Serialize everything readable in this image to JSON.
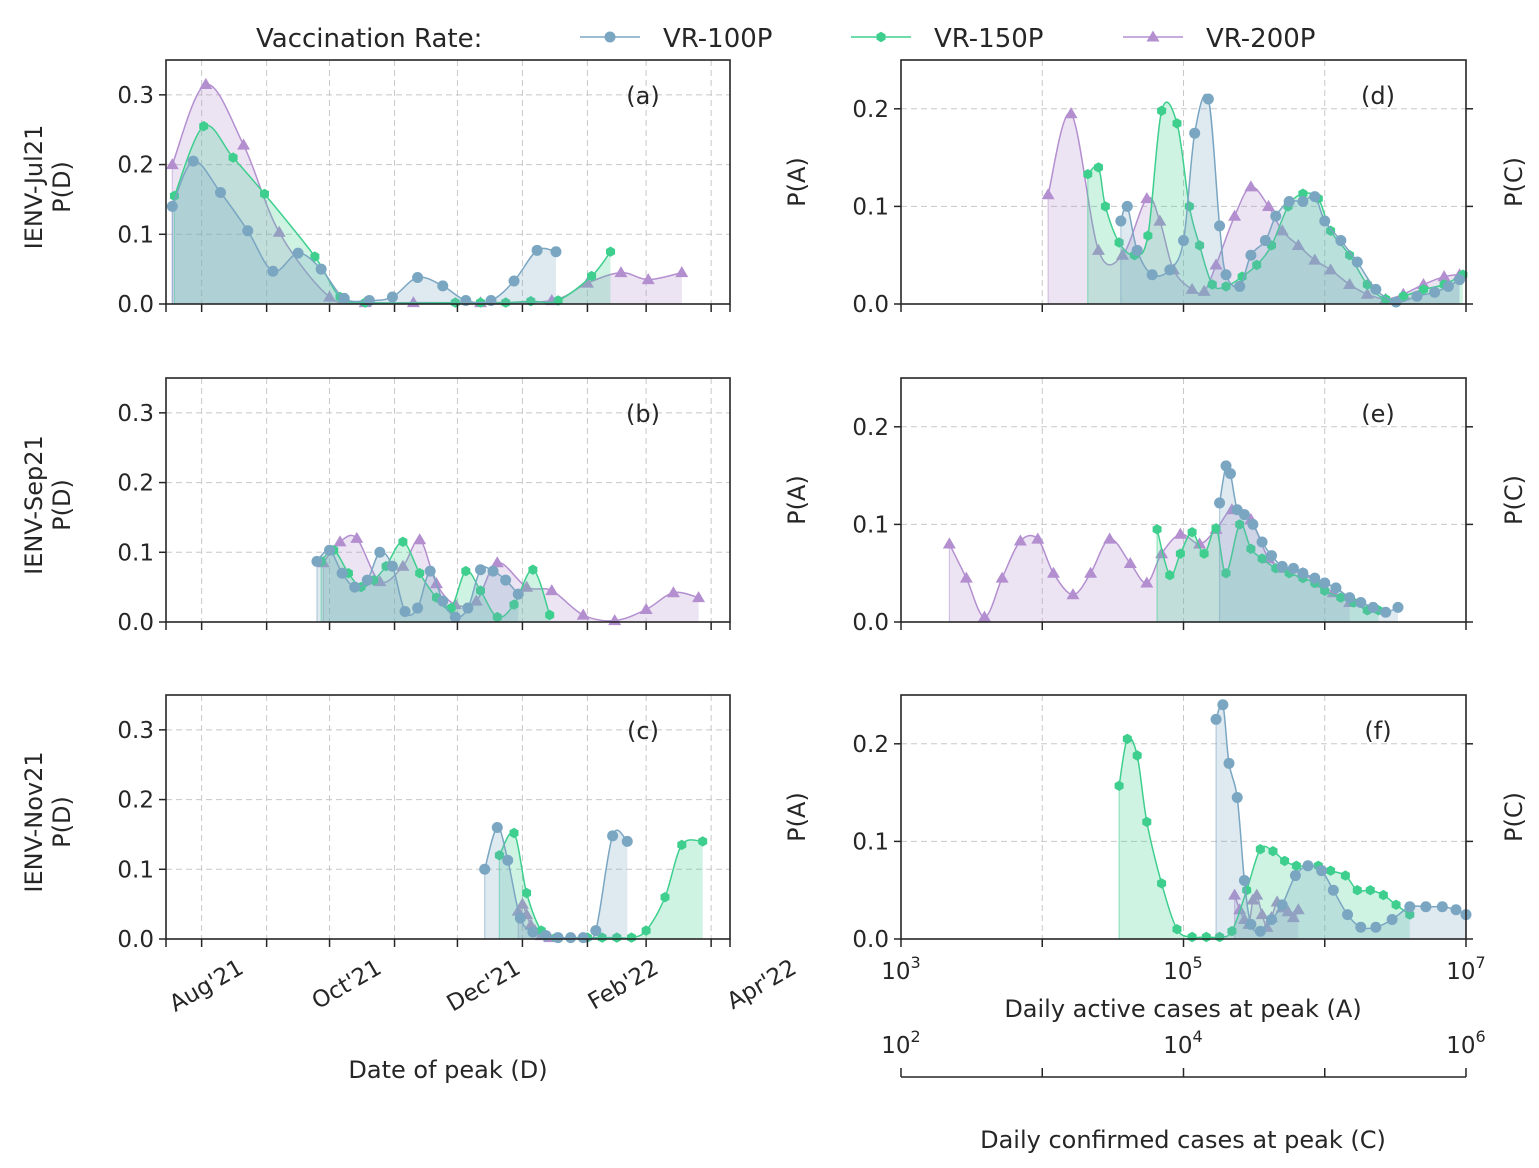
{
  "legend": {
    "title": "Vaccination Rate:",
    "entries": [
      "VR-100P",
      "VR-150P",
      "VR-200P"
    ]
  },
  "colors": {
    "VR-100P": "#7aa6c2",
    "VR-150P": "#3ecf8e",
    "VR-200P": "#b48fd0"
  },
  "left_xlabel": "Date of peak (D)",
  "right_xlabel_primary": "Daily active cases at peak (A)",
  "right_xlabel_secondary": "Daily confirmed cases at peak (C)",
  "row_labels": [
    "IENV-Jul21",
    "IENV-Sep21",
    "IENV-Nov21"
  ],
  "left_ylabel": "P(D)",
  "right_ylabel_left": "P(A)",
  "right_ylabel_right": "P(C)",
  "left_xticks": [
    "Aug'21",
    "Oct'21",
    "Dec'21",
    "Feb'22",
    "Apr'22"
  ],
  "left_yticks": [
    "0.0",
    "0.1",
    "0.2",
    "0.3"
  ],
  "right_yticks": [
    "0.0",
    "0.1",
    "0.2"
  ],
  "right_xticks_primary": [
    {
      "base": "10",
      "exp": "3"
    },
    {
      "base": "10",
      "exp": "5"
    },
    {
      "base": "10",
      "exp": "7"
    }
  ],
  "right_xticks_secondary": [
    {
      "base": "10",
      "exp": "2"
    },
    {
      "base": "10",
      "exp": "4"
    },
    {
      "base": "10",
      "exp": "6"
    }
  ],
  "chart_data": [
    {
      "type": "area",
      "panel": "(a)",
      "scenario": "IENV-Jul21",
      "x_axis": "date",
      "xlim": [
        "2021-07-15",
        "2022-04-10"
      ],
      "ylim": [
        0,
        0.35
      ],
      "series": [
        {
          "name": "VR-100P",
          "x": [
            "2021-07-18",
            "2021-07-28",
            "2021-08-10",
            "2021-08-23",
            "2021-09-04",
            "2021-09-16",
            "2021-09-27",
            "2021-10-08",
            "2021-10-20",
            "2021-10-31",
            "2021-11-12",
            "2021-11-24",
            "2021-12-05",
            "2021-12-17",
            "2021-12-28",
            "2022-01-08",
            "2022-01-17"
          ],
          "y": [
            0.14,
            0.205,
            0.16,
            0.105,
            0.047,
            0.073,
            0.05,
            0.008,
            0.005,
            0.01,
            0.038,
            0.026,
            0.005,
            0.005,
            0.033,
            0.077,
            0.075
          ]
        },
        {
          "name": "VR-150P",
          "x": [
            "2021-07-19",
            "2021-08-02",
            "2021-08-16",
            "2021-08-31",
            "2021-09-24",
            "2021-10-06",
            "2021-10-18",
            "2021-11-30",
            "2021-12-12",
            "2021-12-24",
            "2022-01-05",
            "2022-01-18",
            "2022-02-03",
            "2022-02-12"
          ],
          "y": [
            0.155,
            0.255,
            0.21,
            0.158,
            0.068,
            0.01,
            0.002,
            0.002,
            0.002,
            0.002,
            0.004,
            0.005,
            0.04,
            0.075
          ]
        },
        {
          "name": "VR-200P",
          "x": [
            "2021-07-18",
            "2021-08-03",
            "2021-08-21",
            "2021-09-07",
            "2021-10-01",
            "2021-10-18",
            "2021-11-10",
            "2021-12-12",
            "2022-01-15",
            "2022-02-01",
            "2022-02-17",
            "2022-03-02",
            "2022-03-18"
          ],
          "y": [
            0.2,
            0.315,
            0.228,
            0.103,
            0.01,
            0.002,
            0.002,
            0.002,
            0.005,
            0.03,
            0.045,
            0.035,
            0.045
          ]
        }
      ]
    },
    {
      "type": "area",
      "panel": "(b)",
      "scenario": "IENV-Sep21",
      "x_axis": "date",
      "xlim": [
        "2021-07-15",
        "2022-04-10"
      ],
      "ylim": [
        0,
        0.35
      ],
      "series": [
        {
          "name": "VR-100P",
          "x": [
            "2021-09-25",
            "2021-10-01",
            "2021-10-07",
            "2021-10-13",
            "2021-10-19",
            "2021-10-25",
            "2021-10-31",
            "2021-11-06",
            "2021-11-12",
            "2021-11-18",
            "2021-11-24",
            "2021-11-30",
            "2021-12-06",
            "2021-12-12",
            "2021-12-18",
            "2021-12-24",
            "2021-12-30"
          ],
          "y": [
            0.087,
            0.103,
            0.07,
            0.05,
            0.06,
            0.1,
            0.08,
            0.015,
            0.02,
            0.073,
            0.03,
            0.007,
            0.02,
            0.075,
            0.073,
            0.06,
            0.04
          ]
        },
        {
          "name": "VR-150P",
          "x": [
            "2021-09-27",
            "2021-10-03",
            "2021-10-10",
            "2021-10-16",
            "2021-10-22",
            "2021-10-28",
            "2021-11-05",
            "2021-11-13",
            "2021-11-21",
            "2021-11-28",
            "2021-12-05",
            "2021-12-12",
            "2021-12-20",
            "2021-12-28",
            "2022-01-06",
            "2022-01-14"
          ],
          "y": [
            0.087,
            0.103,
            0.07,
            0.05,
            0.06,
            0.08,
            0.115,
            0.07,
            0.035,
            0.02,
            0.073,
            0.045,
            0.007,
            0.025,
            0.075,
            0.01
          ]
        },
        {
          "name": "VR-200P",
          "x": [
            "2021-09-28",
            "2021-10-06",
            "2021-10-14",
            "2021-10-25",
            "2021-11-05",
            "2021-11-13",
            "2021-11-21",
            "2021-11-30",
            "2021-12-10",
            "2021-12-20",
            "2022-01-03",
            "2022-01-15",
            "2022-01-30",
            "2022-02-14",
            "2022-03-01",
            "2022-03-14",
            "2022-03-26"
          ],
          "y": [
            0.085,
            0.115,
            0.12,
            0.058,
            0.08,
            0.118,
            0.055,
            0.025,
            0.03,
            0.085,
            0.05,
            0.045,
            0.01,
            0.002,
            0.018,
            0.042,
            0.035
          ]
        }
      ]
    },
    {
      "type": "area",
      "panel": "(c)",
      "scenario": "IENV-Nov21",
      "x_axis": "date",
      "xlim": [
        "2021-07-15",
        "2022-04-10"
      ],
      "ylim": [
        0,
        0.35
      ],
      "series": [
        {
          "name": "VR-100P",
          "x": [
            "2021-12-14",
            "2021-12-20",
            "2021-12-25",
            "2021-12-31",
            "2022-01-06",
            "2022-01-12",
            "2022-01-18",
            "2022-01-24",
            "2022-01-30",
            "2022-02-05",
            "2022-02-13",
            "2022-02-20"
          ],
          "y": [
            0.1,
            0.16,
            0.113,
            0.03,
            0.01,
            0.005,
            0.002,
            0.002,
            0.002,
            0.012,
            0.148,
            0.14
          ]
        },
        {
          "name": "VR-150P",
          "x": [
            "2021-12-21",
            "2021-12-28",
            "2022-01-03",
            "2022-01-10",
            "2022-01-17",
            "2022-01-24",
            "2022-02-01",
            "2022-02-08",
            "2022-02-15",
            "2022-02-22",
            "2022-03-01",
            "2022-03-10",
            "2022-03-18",
            "2022-03-28"
          ],
          "y": [
            0.12,
            0.152,
            0.066,
            0.012,
            0.002,
            0.002,
            0.002,
            0.002,
            0.002,
            0.002,
            0.012,
            0.06,
            0.135,
            0.14
          ]
        },
        {
          "name": "VR-200P",
          "x": [
            "2021-12-30",
            "2022-01-01",
            "2022-01-03",
            "2022-01-05",
            "2022-01-07",
            "2022-01-10",
            "2022-01-14"
          ],
          "y": [
            0.04,
            0.05,
            0.035,
            0.02,
            0.012,
            0.005,
            0.002
          ]
        }
      ]
    },
    {
      "type": "area",
      "panel": "(d)",
      "scenario": "IENV-Jul21",
      "x_axis": "log",
      "xlim": [
        1000,
        10000000
      ],
      "ylim": [
        0,
        0.25
      ],
      "series": [
        {
          "name": "VR-100P",
          "x": [
            36000,
            40000,
            47000,
            60000,
            80000,
            100000,
            120000,
            150000,
            180000,
            200000,
            250000,
            300000,
            380000,
            450000,
            560000,
            700000,
            850000,
            1000000,
            1300000,
            1700000,
            2300000,
            3200000,
            4500000,
            6000000,
            7500000,
            9000000
          ],
          "y": [
            0.085,
            0.1,
            0.055,
            0.03,
            0.035,
            0.065,
            0.175,
            0.21,
            0.08,
            0.03,
            0.018,
            0.05,
            0.065,
            0.09,
            0.105,
            0.105,
            0.11,
            0.085,
            0.065,
            0.043,
            0.015,
            0.002,
            0.008,
            0.012,
            0.018,
            0.025
          ]
        },
        {
          "name": "VR-150P",
          "x": [
            21000,
            25000,
            28000,
            35000,
            45000,
            56000,
            70000,
            90000,
            110000,
            130000,
            160000,
            200000,
            260000,
            330000,
            420000,
            550000,
            700000,
            900000,
            1100000,
            1500000,
            2000000,
            2700000,
            3600000,
            5000000,
            7000000,
            9500000
          ],
          "y": [
            0.133,
            0.14,
            0.1,
            0.063,
            0.05,
            0.07,
            0.198,
            0.185,
            0.1,
            0.06,
            0.02,
            0.018,
            0.028,
            0.04,
            0.06,
            0.1,
            0.113,
            0.108,
            0.075,
            0.05,
            0.02,
            0.005,
            0.008,
            0.015,
            0.02,
            0.03
          ]
        },
        {
          "name": "VR-200P",
          "x": [
            11000,
            16000,
            25000,
            37000,
            55000,
            68000,
            85000,
            115000,
            140000,
            170000,
            230000,
            300000,
            400000,
            500000,
            650000,
            850000,
            1100000,
            1500000,
            2000000,
            2700000,
            3600000,
            5000000,
            7000000,
            9000000
          ],
          "y": [
            0.112,
            0.195,
            0.055,
            0.05,
            0.108,
            0.085,
            0.035,
            0.015,
            0.013,
            0.04,
            0.09,
            0.12,
            0.1,
            0.075,
            0.06,
            0.045,
            0.035,
            0.02,
            0.01,
            0.005,
            0.01,
            0.02,
            0.028,
            0.03
          ]
        }
      ]
    },
    {
      "type": "area",
      "panel": "(e)",
      "scenario": "IENV-Sep21",
      "x_axis": "log",
      "xlim": [
        1000,
        10000000
      ],
      "ylim": [
        0,
        0.25
      ],
      "series": [
        {
          "name": "VR-100P",
          "x": [
            180000,
            200000,
            215000,
            240000,
            270000,
            310000,
            360000,
            420000,
            500000,
            600000,
            700000,
            850000,
            1000000,
            1200000,
            1500000,
            1800000,
            2200000,
            2700000,
            3300000
          ],
          "y": [
            0.122,
            0.16,
            0.152,
            0.115,
            0.11,
            0.1,
            0.082,
            0.068,
            0.057,
            0.055,
            0.05,
            0.045,
            0.04,
            0.035,
            0.025,
            0.02,
            0.015,
            0.01,
            0.015
          ]
        },
        {
          "name": "VR-150P",
          "x": [
            65000,
            80000,
            95000,
            115000,
            140000,
            170000,
            200000,
            250000,
            300000,
            360000,
            450000,
            560000,
            700000,
            850000,
            1000000,
            1300000,
            1600000,
            2000000,
            2400000
          ],
          "y": [
            0.095,
            0.048,
            0.07,
            0.092,
            0.07,
            0.096,
            0.05,
            0.1,
            0.075,
            0.065,
            0.055,
            0.05,
            0.045,
            0.04,
            0.032,
            0.025,
            0.02,
            0.012,
            0.012
          ]
        },
        {
          "name": "VR-200P",
          "x": [
            2200,
            2900,
            3900,
            5200,
            7000,
            9300,
            12000,
            16500,
            22000,
            30000,
            42000,
            55000,
            70000,
            95000,
            130000,
            170000,
            220000,
            300000,
            400000,
            520000,
            700000,
            900000,
            1150000,
            1500000
          ],
          "y": [
            0.08,
            0.045,
            0.005,
            0.045,
            0.083,
            0.085,
            0.05,
            0.028,
            0.05,
            0.085,
            0.06,
            0.04,
            0.07,
            0.09,
            0.08,
            0.095,
            0.115,
            0.105,
            0.065,
            0.055,
            0.05,
            0.04,
            0.03,
            0.02
          ]
        }
      ]
    },
    {
      "type": "area",
      "panel": "(f)",
      "scenario": "IENV-Nov21",
      "x_axis": "log",
      "xlim": [
        1000,
        10000000
      ],
      "ylim": [
        0,
        0.25
      ],
      "series": [
        {
          "name": "VR-100P",
          "x": [
            170000,
            190000,
            210000,
            240000,
            270000,
            300000,
            350000,
            420000,
            500000,
            620000,
            760000,
            950000,
            1150000,
            1450000,
            1800000,
            2300000,
            3000000,
            4000000,
            5200000,
            6800000,
            8500000,
            10000000
          ],
          "y": [
            0.225,
            0.24,
            0.18,
            0.145,
            0.06,
            0.015,
            0.008,
            0.02,
            0.035,
            0.065,
            0.075,
            0.07,
            0.05,
            0.025,
            0.012,
            0.012,
            0.02,
            0.033,
            0.033,
            0.033,
            0.03,
            0.025
          ]
        },
        {
          "name": "VR-150P",
          "x": [
            35000,
            40000,
            47000,
            55000,
            70000,
            90000,
            115000,
            145000,
            180000,
            220000,
            280000,
            350000,
            430000,
            520000,
            630000,
            760000,
            900000,
            1100000,
            1400000,
            1700000,
            2100000,
            2600000,
            3200000,
            4000000
          ],
          "y": [
            0.157,
            0.205,
            0.188,
            0.12,
            0.057,
            0.01,
            0.002,
            0.002,
            0.002,
            0.008,
            0.05,
            0.092,
            0.09,
            0.08,
            0.075,
            0.075,
            0.075,
            0.07,
            0.065,
            0.05,
            0.05,
            0.045,
            0.035,
            0.025
          ]
        },
        {
          "name": "VR-200P",
          "x": [
            230000,
            250000,
            270000,
            290000,
            310000,
            330000,
            360000,
            390000,
            420000,
            460000,
            500000,
            550000,
            600000,
            650000
          ],
          "y": [
            0.045,
            0.03,
            0.02,
            0.015,
            0.04,
            0.045,
            0.025,
            0.012,
            0.022,
            0.038,
            0.032,
            0.028,
            0.022,
            0.03
          ]
        }
      ]
    }
  ]
}
